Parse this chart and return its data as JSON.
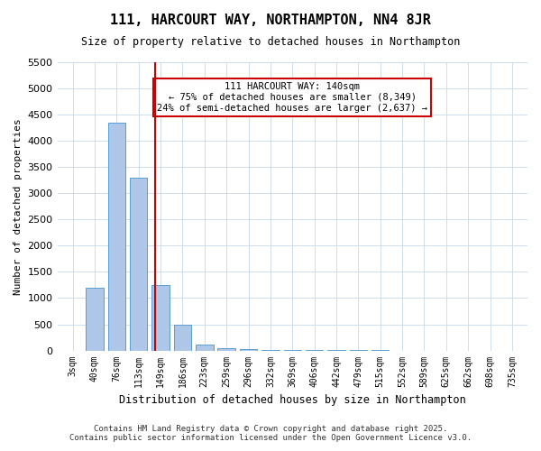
{
  "title": "111, HARCOURT WAY, NORTHAMPTON, NN4 8JR",
  "subtitle": "Size of property relative to detached houses in Northampton",
  "xlabel": "Distribution of detached houses by size in Northampton",
  "ylabel": "Number of detached properties",
  "categories": [
    "3sqm",
    "40sqm",
    "76sqm",
    "113sqm",
    "149sqm",
    "186sqm",
    "223sqm",
    "259sqm",
    "296sqm",
    "332sqm",
    "369sqm",
    "406sqm",
    "442sqm",
    "479sqm",
    "515sqm",
    "552sqm",
    "589sqm",
    "625sqm",
    "662sqm",
    "698sqm",
    "735sqm"
  ],
  "values": [
    0,
    1200,
    4350,
    3300,
    1250,
    500,
    120,
    50,
    20,
    10,
    5,
    3,
    2,
    1,
    1,
    0,
    0,
    0,
    0,
    0,
    0
  ],
  "bar_color": "#aec6e8",
  "bar_edgecolor": "#5a9fd4",
  "bar_width": 0.8,
  "property_size": 140,
  "property_bin_index": 3,
  "red_line_color": "#cc0000",
  "annotation_text": "111 HARCOURT WAY: 140sqm\n← 75% of detached houses are smaller (8,349)\n24% of semi-detached houses are larger (2,637) →",
  "annotation_box_color": "#ffffff",
  "annotation_box_edgecolor": "#cc0000",
  "ylim": [
    0,
    5500
  ],
  "yticks": [
    0,
    500,
    1000,
    1500,
    2000,
    2500,
    3000,
    3500,
    4000,
    4500,
    5000,
    5500
  ],
  "background_color": "#ffffff",
  "grid_color": "#ccddee",
  "footer_line1": "Contains HM Land Registry data © Crown copyright and database right 2025.",
  "footer_line2": "Contains public sector information licensed under the Open Government Licence v3.0."
}
